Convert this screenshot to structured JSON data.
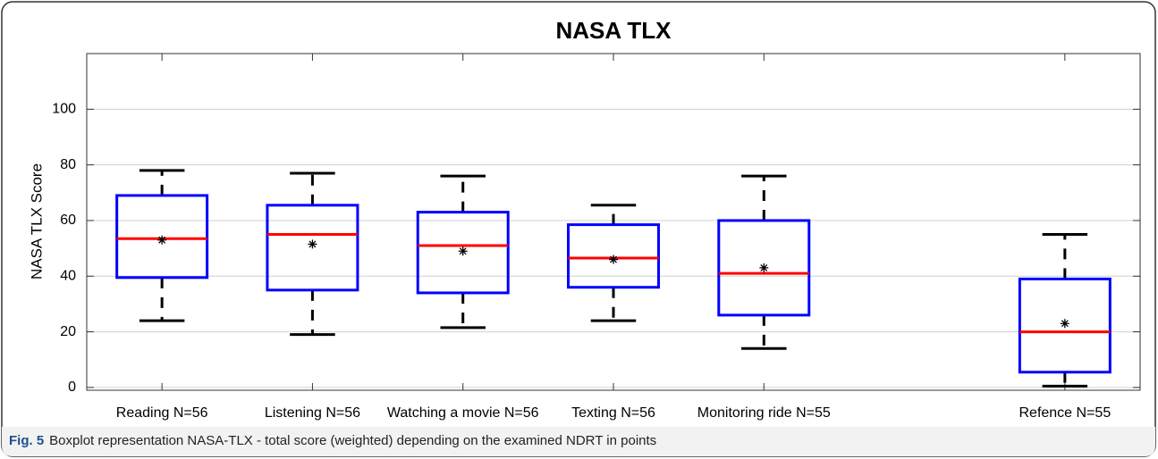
{
  "chart_data": {
    "type": "box",
    "title": "NASA TLX",
    "ylabel": "NASA TLX Score",
    "caption_label": "Fig. 5",
    "caption": "Boxplot representation NASA-TLX - total score (weighted) depending on the examined NDRT in points",
    "categories": [
      "Reading N=56",
      "Listening N=56",
      "Watching a movie N=56",
      "Texting N=56",
      "Monitoring ride N=55",
      "Refence N=55"
    ],
    "x": [
      1,
      2,
      3,
      4,
      5,
      7
    ],
    "xlim": [
      0.5,
      7.5
    ],
    "ylim": [
      -1,
      120
    ],
    "yticks": [
      0,
      20,
      40,
      60,
      80,
      100
    ],
    "grid": true,
    "box_color": "#0000ff",
    "median_color": "#ff0000",
    "whisker_color": "#000000",
    "boxes": [
      {
        "min": 24,
        "q1": 39.5,
        "median": 53.5,
        "q3": 69,
        "max": 78,
        "mean": 53
      },
      {
        "min": 19,
        "q1": 35,
        "median": 55,
        "q3": 65.5,
        "max": 77,
        "mean": 51.5
      },
      {
        "min": 21.5,
        "q1": 34,
        "median": 51,
        "q3": 63,
        "max": 76,
        "mean": 49
      },
      {
        "min": 24,
        "q1": 36,
        "median": 46.5,
        "q3": 58.5,
        "max": 65.5,
        "mean": 46
      },
      {
        "min": 14,
        "q1": 26,
        "median": 41,
        "q3": 60,
        "max": 76,
        "mean": 43
      },
      {
        "min": 0.5,
        "q1": 5.5,
        "median": 20,
        "q3": 39,
        "max": 55,
        "mean": 23
      }
    ]
  }
}
